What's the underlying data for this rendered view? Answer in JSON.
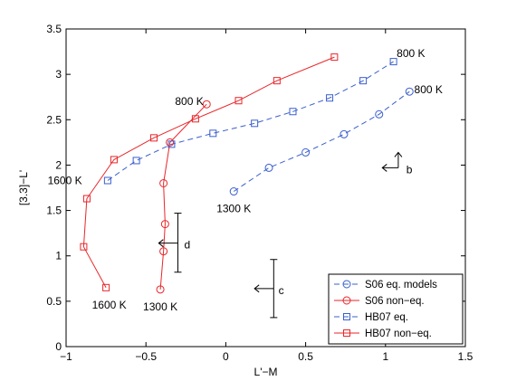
{
  "chart_data": {
    "type": "line",
    "title": "",
    "xlabel": "L'−M",
    "ylabel": "[3.3]−L'",
    "xlim": [
      -1,
      1.5
    ],
    "ylim": [
      0,
      3.5
    ],
    "xticks": [
      -1,
      -0.5,
      0,
      0.5,
      1,
      1.5
    ],
    "yticks": [
      0,
      0.5,
      1,
      1.5,
      2,
      2.5,
      3,
      3.5
    ],
    "xtick_labels": [
      "−1",
      "−0.5",
      "0",
      "0.5",
      "1",
      "1.5"
    ],
    "ytick_labels": [
      "0",
      "0.5",
      "1",
      "1.5",
      "2",
      "2.5",
      "3",
      "3.5"
    ],
    "grid": false,
    "legend_position": "bottom-right",
    "colors": {
      "blue": "#3a5fcd",
      "red": "#e8262a",
      "black": "#000000"
    },
    "series": [
      {
        "name": "S06 eq. models",
        "color": "#3a5fcd",
        "marker": "circle",
        "linestyle": "dashed",
        "x": [
          0.05,
          0.27,
          0.5,
          0.74,
          0.96,
          1.15
        ],
        "y": [
          1.71,
          1.97,
          2.14,
          2.34,
          2.56,
          2.81
        ]
      },
      {
        "name": "S06 non−eq.",
        "color": "#e8262a",
        "marker": "circle",
        "linestyle": "solid",
        "x": [
          -0.41,
          -0.39,
          -0.38,
          -0.39,
          -0.35,
          -0.12
        ],
        "y": [
          0.63,
          1.05,
          1.35,
          1.8,
          2.25,
          2.67
        ]
      },
      {
        "name": "HB07  eq.",
        "color": "#3a5fcd",
        "marker": "square",
        "linestyle": "dashed",
        "x": [
          -0.74,
          -0.56,
          -0.34,
          -0.08,
          0.18,
          0.42,
          0.65,
          0.86,
          1.05
        ],
        "y": [
          1.83,
          2.05,
          2.23,
          2.35,
          2.46,
          2.59,
          2.74,
          2.93,
          3.14
        ]
      },
      {
        "name": "HB07 non−eq.",
        "color": "#e8262a",
        "marker": "square",
        "linestyle": "solid",
        "x": [
          -0.75,
          -0.89,
          -0.87,
          -0.7,
          -0.45,
          -0.19,
          0.08,
          0.32,
          0.68
        ],
        "y": [
          0.65,
          1.1,
          1.63,
          2.06,
          2.3,
          2.51,
          2.71,
          2.93,
          3.19
        ]
      }
    ],
    "error_bars": [
      {
        "label": "d",
        "x": -0.3,
        "ylow": 0.82,
        "yhigh": 1.47,
        "arrow_from": -0.3,
        "arrow_to": -0.42,
        "arrow_y": 1.14,
        "label_x": -0.26,
        "label_y": 1.12
      },
      {
        "label": "c",
        "x": 0.3,
        "ylow": 0.32,
        "yhigh": 0.96,
        "arrow_from": 0.3,
        "arrow_to": 0.18,
        "arrow_y": 0.64,
        "label_x": 0.33,
        "label_y": 0.62
      }
    ],
    "vector_b": {
      "label": "b",
      "x": 1.08,
      "y": 1.97,
      "dx": -0.1,
      "dy": 0.17,
      "label_x": 1.13,
      "label_y": 1.95
    },
    "annotations": [
      {
        "text": "800 K",
        "x": 1.07,
        "y": 3.23,
        "anchor": "start"
      },
      {
        "text": "800 K",
        "x": 1.18,
        "y": 2.83,
        "anchor": "start"
      },
      {
        "text": "800 K",
        "x": -0.14,
        "y": 2.7,
        "anchor": "end"
      },
      {
        "text": "1600 K",
        "x": -0.9,
        "y": 1.83,
        "anchor": "end"
      },
      {
        "text": "1300 K",
        "x": 0.05,
        "y": 1.52,
        "anchor": "middle"
      },
      {
        "text": "1600 K",
        "x": -0.73,
        "y": 0.46,
        "anchor": "middle"
      },
      {
        "text": "1300 K",
        "x": -0.41,
        "y": 0.44,
        "anchor": "middle"
      }
    ]
  }
}
